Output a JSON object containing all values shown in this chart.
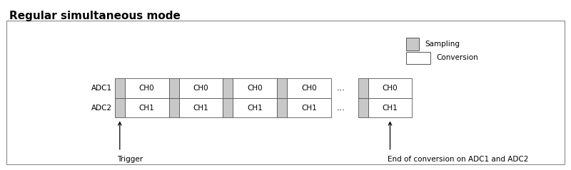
{
  "title": "Regular simultaneous mode",
  "title_fontsize": 11,
  "title_fontweight": "bold",
  "bg_color": "#ffffff",
  "box_border_color": "#555555",
  "sampling_color": "#c8c8c8",
  "adc_labels": [
    "ADC1",
    "ADC2"
  ],
  "ch_labels_row1": [
    "CH0",
    "CH0",
    "CH0",
    "CH0"
  ],
  "ch_labels_row2": [
    "CH1",
    "CH1",
    "CH1",
    "CH1"
  ],
  "ch_label_last_row1": "CH0",
  "ch_label_last_row2": "CH1",
  "dots": "...",
  "legend_sampling_label": "Sampling",
  "legend_conversion_label": "Conversion",
  "trigger_label": "Trigger",
  "end_label": "End of conversion on ADC1 and ADC2",
  "font_size": 7.5,
  "outer_box_color": "#888888"
}
